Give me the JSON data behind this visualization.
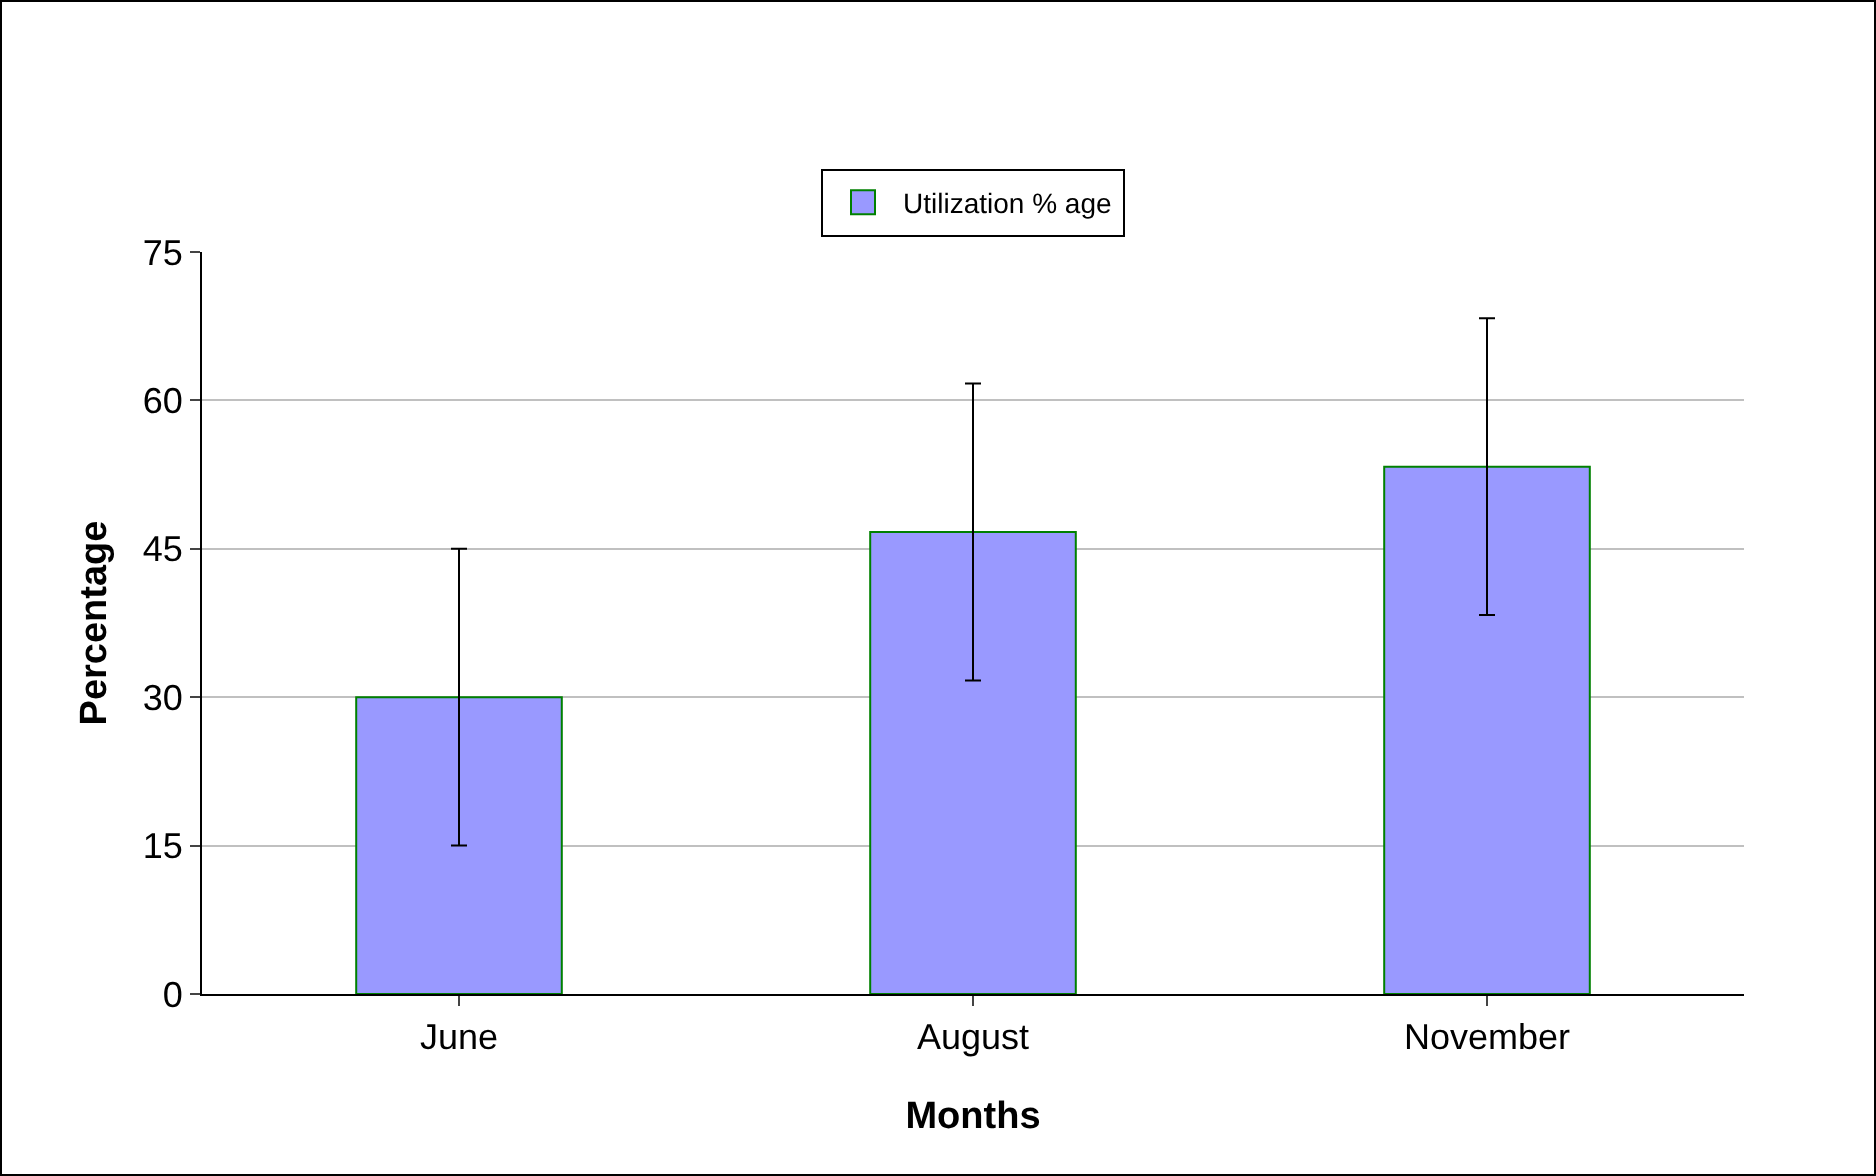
{
  "chart_data": {
    "type": "bar",
    "xlabel": "Months",
    "ylabel": "Percentage",
    "categories": [
      "June",
      "August",
      "November"
    ],
    "series": [
      {
        "name": "Utilization % age",
        "color": "#9999ff",
        "values": [
          30,
          46.7,
          53.3
        ],
        "errors": [
          15,
          15,
          15
        ]
      }
    ],
    "ylim": [
      0,
      75
    ],
    "yticks": [
      0,
      15,
      30,
      45,
      60,
      75
    ],
    "grid": "y",
    "legend": "top"
  }
}
